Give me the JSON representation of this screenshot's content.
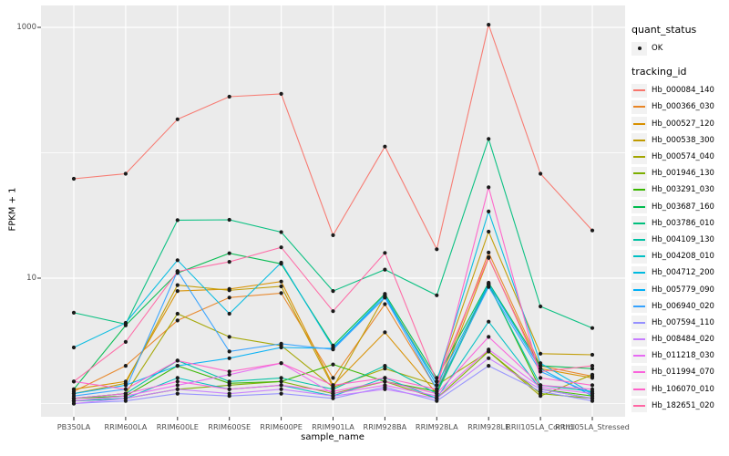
{
  "figure": {
    "panel_bg": "#EBEBEB",
    "grid_color": "#FFFFFF",
    "tick_color": "#333333",
    "point_color": "#1A1A1A",
    "axis_text_color": "#4D4D4D"
  },
  "legend": {
    "quant_status_title": "quant_status",
    "quant_status_items": [
      {
        "label": "OK",
        "shape": "filled-point"
      }
    ],
    "tracking_title": "tracking_id"
  },
  "axes": {
    "y_ticks": [
      {
        "label": "1000",
        "value": 1000
      },
      {
        "label": "10",
        "value": 10
      }
    ],
    "y_grid_values": [
      1,
      10,
      100,
      1000
    ]
  },
  "chart_data": {
    "type": "line",
    "title": "",
    "xlabel": "sample_name",
    "ylabel": "FPKM + 1",
    "yscale": "log10",
    "ylim": [
      0.9,
      1300
    ],
    "grid": true,
    "legend_position": "right",
    "point_shape": "filled-circle",
    "categories": [
      "PB350LA",
      "RRIM600LA",
      "RRIM600LE",
      "RRIM600SE",
      "RRIM600PE",
      "RRIM901LA",
      "RRIM928BA",
      "RRIM928LA",
      "RRIM928LE",
      "RRII105LA_Control",
      "RRII105LA_Stressed"
    ],
    "series": [
      {
        "name": "Hb_000084_140",
        "color": "#F8766D",
        "values": [
          62,
          68,
          185,
          280,
          295,
          22,
          112,
          17,
          1050,
          68,
          24
        ]
      },
      {
        "name": "Hb_000366_030",
        "color": "#E88526",
        "values": [
          1.25,
          2.0,
          4.6,
          7.0,
          7.6,
          1.6,
          6.2,
          1.3,
          16,
          2.0,
          1.65
        ]
      },
      {
        "name": "Hb_000527_120",
        "color": "#D89000",
        "values": [
          1.3,
          1.5,
          7.9,
          8.2,
          9.4,
          1.4,
          3.7,
          1.2,
          14.5,
          1.9,
          1.6
        ]
      },
      {
        "name": "Hb_000538_300",
        "color": "#C09B00",
        "values": [
          1.2,
          1.45,
          8.8,
          8.0,
          8.6,
          1.35,
          7.2,
          1.5,
          23.5,
          2.5,
          2.45
        ]
      },
      {
        "name": "Hb_000574_040",
        "color": "#A3A500",
        "values": [
          1.1,
          1.2,
          5.2,
          3.4,
          2.9,
          1.35,
          1.9,
          1.4,
          2.6,
          1.15,
          1.7
        ]
      },
      {
        "name": "Hb_001946_130",
        "color": "#7CAE00",
        "values": [
          1.05,
          1.1,
          1.3,
          1.4,
          1.5,
          1.2,
          1.5,
          1.1,
          2.6,
          1.2,
          1.1
        ]
      },
      {
        "name": "Hb_003291_030",
        "color": "#39B600",
        "values": [
          1.1,
          1.15,
          2.0,
          1.45,
          1.5,
          2.05,
          1.5,
          1.25,
          9.0,
          1.3,
          1.15
        ]
      },
      {
        "name": "Hb_003687_160",
        "color": "#00BB4E",
        "values": [
          1.3,
          4.2,
          11,
          15.8,
          13,
          2.9,
          7.5,
          1.6,
          9.2,
          2.0,
          1.9
        ]
      },
      {
        "name": "Hb_003786_010",
        "color": "#00BF7D",
        "values": [
          5.3,
          4.3,
          29,
          29.2,
          23.3,
          7.9,
          11.7,
          7.3,
          129,
          5.95,
          4.0
        ]
      },
      {
        "name": "Hb_004109_130",
        "color": "#00C1A3",
        "values": [
          1.1,
          1.2,
          2.2,
          1.5,
          1.6,
          1.3,
          2.0,
          1.2,
          8.8,
          1.4,
          1.25
        ]
      },
      {
        "name": "Hb_004208_010",
        "color": "#00BFC4",
        "values": [
          1.05,
          1.1,
          1.6,
          1.3,
          1.4,
          1.15,
          1.6,
          1.1,
          4.5,
          1.3,
          1.1
        ]
      },
      {
        "name": "Hb_004712_200",
        "color": "#00BAE0",
        "values": [
          2.8,
          4.4,
          13.9,
          5.2,
          13.3,
          2.8,
          7.0,
          1.5,
          34,
          2.1,
          1.2
        ]
      },
      {
        "name": "Hb_005779_090",
        "color": "#00B0F6",
        "values": [
          1.2,
          1.4,
          2.0,
          2.3,
          2.8,
          2.75,
          7.3,
          1.4,
          9.0,
          1.9,
          1.15
        ]
      },
      {
        "name": "Hb_006940_020",
        "color": "#35A2FF",
        "values": [
          1.15,
          1.3,
          11.4,
          2.6,
          3.0,
          2.7,
          7.0,
          1.3,
          8.5,
          1.8,
          1.2
        ]
      },
      {
        "name": "Hb_007594_110",
        "color": "#9590FF",
        "values": [
          1.0,
          1.05,
          1.2,
          1.15,
          1.2,
          1.1,
          1.35,
          1.05,
          2.0,
          1.25,
          1.05
        ]
      },
      {
        "name": "Hb_008484_020",
        "color": "#C77CFF",
        "values": [
          1.0,
          1.1,
          1.3,
          1.2,
          1.3,
          1.15,
          1.3,
          1.1,
          2.3,
          1.3,
          1.1
        ]
      },
      {
        "name": "Hb_011218_030",
        "color": "#E76BF3",
        "values": [
          1.05,
          1.15,
          1.4,
          1.7,
          2.1,
          1.2,
          1.4,
          1.15,
          2.7,
          1.35,
          1.2
        ]
      },
      {
        "name": "Hb_011994_070",
        "color": "#FA62DB",
        "values": [
          1.1,
          1.2,
          1.5,
          1.3,
          1.4,
          1.25,
          1.5,
          1.2,
          3.4,
          1.4,
          1.3
        ]
      },
      {
        "name": "Hb_106070_010",
        "color": "#FF61C9",
        "values": [
          1.5,
          1.3,
          2.2,
          1.8,
          2.1,
          1.4,
          1.6,
          1.3,
          53,
          1.6,
          1.4
        ]
      },
      {
        "name": "Hb_182651_020",
        "color": "#FF67A4",
        "values": [
          1.5,
          3.1,
          11.3,
          13.5,
          17.6,
          5.45,
          15.9,
          1.5,
          14.7,
          1.8,
          2.0
        ]
      }
    ]
  }
}
